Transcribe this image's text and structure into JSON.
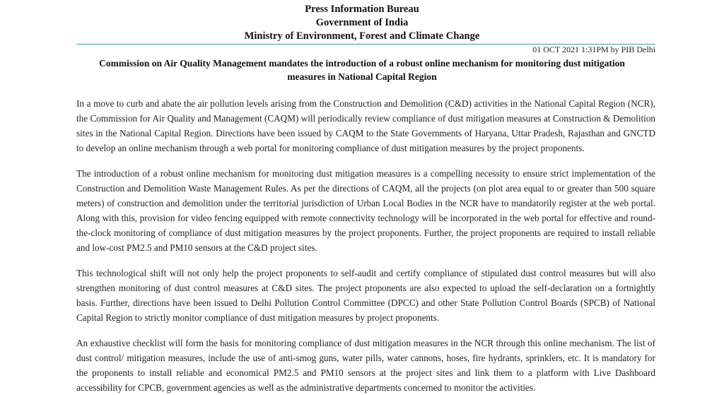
{
  "header": {
    "line1": "Press Information Bureau",
    "line2": "Government of India",
    "line3": "Ministry of Environment, Forest and Climate Change"
  },
  "dateline": "01 OCT 2021 1:31PM by PIB Delhi",
  "title": "Commission on Air Quality Management mandates the introduction of a robust online mechanism for monitoring dust mitigation measures in National Capital Region",
  "paragraphs": [
    "In a move to curb and abate the air pollution levels arising from the Construction and Demolition (C&D) activities in the National Capital Region (NCR), the Commission for Air Quality and Management (CAQM) will periodically review compliance of dust mitigation measures at Construction & Demolition sites in the National Capital Region. Directions have been issued by CAQM to the State Governments of Haryana, Uttar Pradesh, Rajasthan and GNCTD to develop an online mechanism through a web portal for monitoring compliance of dust mitigation measures by the project proponents.",
    "The introduction of a robust online mechanism for monitoring dust mitigation measures is a compelling necessity to ensure strict implementation of the Construction and Demolition Waste Management Rules. As per the directions of CAQM, all the projects (on plot area equal to or greater than 500 square meters) of construction and demolition under the territorial jurisdiction of Urban Local Bodies in the NCR have to mandatorily register at the web portal. Along with this, provision for video fencing equipped with remote connectivity technology will be incorporated in the web portal for effective and round-the-clock monitoring of compliance of dust mitigation measures by the project proponents. Further, the project proponents are required to install reliable and low-cost PM2.5 and PM10 sensors at the C&D project sites.",
    "This technological shift will not only help the project proponents to self-audit and certify compliance of stipulated dust control measures but will also strengthen monitoring of dust control measures at C&D sites. The project proponents are also expected to upload the self-declaration on a fortnightly basis. Further, directions have been issued to Delhi Pollution Control Committee (DPCC) and other State Pollution Control Boards (SPCB) of National Capital Region to strictly monitor compliance of dust mitigation measures by project proponents.",
    "An exhaustive checklist will form the basis for monitoring compliance of dust mitigation measures in the NCR through this online mechanism. The list of dust control/ mitigation measures, include the use of anti-smog guns, water pills, water cannons, hoses, fire hydrants, sprinklers, etc. It is mandatory for the proponents to install reliable and economical PM2.5 and PM10 sensors at the project sites and link them to a platform with Live Dashboard accessibility for CPCB, government agencies as well as the administrative departments concerned to monitor the activities."
  ],
  "colors": {
    "rule": "#3aa0a8"
  }
}
